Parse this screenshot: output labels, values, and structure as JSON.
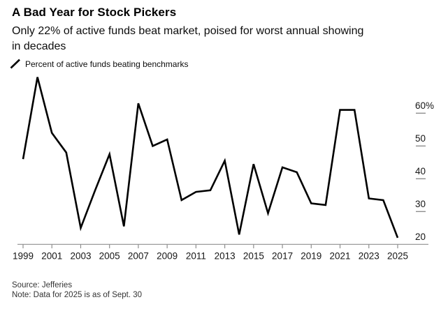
{
  "header": {
    "title": "A Bad Year for Stock Pickers",
    "subtitle_line1": "Only 22% of active funds beat market, poised for worst annual showing",
    "subtitle_line2": "in decades",
    "legend_label": "Percent of active funds beating benchmarks"
  },
  "chart_data": {
    "type": "line",
    "title": "A Bad Year for Stock Pickers",
    "series_name": "Percent of active funds beating benchmarks",
    "x": [
      1999,
      2000,
      2001,
      2002,
      2003,
      2004,
      2005,
      2006,
      2007,
      2008,
      2009,
      2010,
      2011,
      2012,
      2013,
      2014,
      2015,
      2016,
      2017,
      2018,
      2019,
      2020,
      2021,
      2022,
      2023,
      2024,
      2025
    ],
    "values": [
      46,
      71,
      54,
      48,
      25,
      36.5,
      47.5,
      25.5,
      63,
      50,
      52,
      33.5,
      36,
      36.5,
      45.5,
      23,
      44.5,
      29.5,
      43.5,
      42,
      32.5,
      32,
      61,
      61,
      34,
      33.5,
      22
    ],
    "ylim": [
      18,
      72
    ],
    "yticks": [
      {
        "value": 60,
        "label": "60%",
        "dash": true
      },
      {
        "value": 50,
        "label": "50",
        "dash": true
      },
      {
        "value": 40,
        "label": "40",
        "dash": true
      },
      {
        "value": 30,
        "label": "30",
        "dash": true
      },
      {
        "value": 20,
        "label": "20",
        "dash": false
      }
    ],
    "xticks": [
      1999,
      2001,
      2003,
      2005,
      2007,
      2009,
      2011,
      2013,
      2015,
      2017,
      2019,
      2021,
      2023,
      2025
    ],
    "grid": "off",
    "legend_position": "top-left",
    "line_color": "#000000",
    "axis_color": "#8f8f8f",
    "tick_label_color": "#161616"
  },
  "footer": {
    "source": "Source: Jefferies",
    "note": "Note: Data for 2025 is as of Sept. 30"
  }
}
